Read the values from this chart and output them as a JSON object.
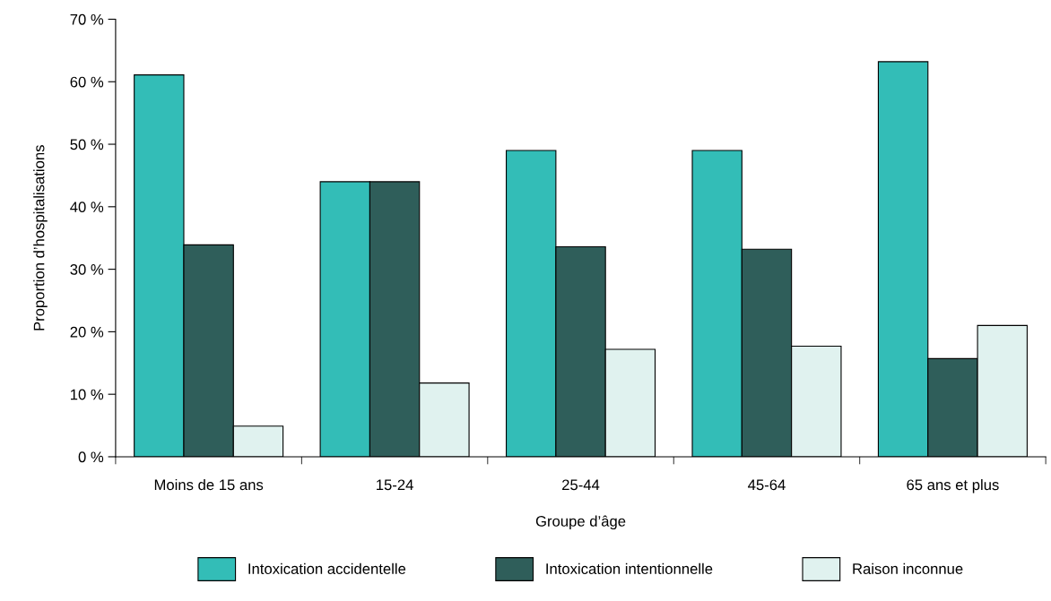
{
  "chart_data": {
    "type": "bar",
    "xlabel": "Groupe d’âge",
    "ylabel": "Proportion d’hospitalisations",
    "categories": [
      "Moins de 15 ans",
      "15-24",
      "25-44",
      "45-64",
      "65 ans et plus"
    ],
    "series": [
      {
        "name": "Intoxication accidentelle",
        "color": "#33bdb7",
        "values": [
          61.1,
          44.0,
          49.0,
          49.0,
          63.2
        ]
      },
      {
        "name": "Intoxication intentionnelle",
        "color": "#2f5e5a",
        "values": [
          33.9,
          44.0,
          33.6,
          33.2,
          15.7
        ]
      },
      {
        "name": "Raison inconnue",
        "color": "#e0f2ef",
        "values": [
          4.9,
          11.8,
          17.2,
          17.7,
          21.0
        ]
      }
    ],
    "ylim": [
      0,
      70
    ],
    "yticks": [
      {
        "value": 0,
        "label": "0 %"
      },
      {
        "value": 10,
        "label": "10 %"
      },
      {
        "value": 20,
        "label": "20 %"
      },
      {
        "value": 30,
        "label": "30 %"
      },
      {
        "value": 40,
        "label": "40 %"
      },
      {
        "value": 50,
        "label": "50 %"
      },
      {
        "value": 60,
        "label": "60 %"
      },
      {
        "value": 70,
        "label": "70 %"
      }
    ],
    "grid": false,
    "legend": "bottom"
  }
}
